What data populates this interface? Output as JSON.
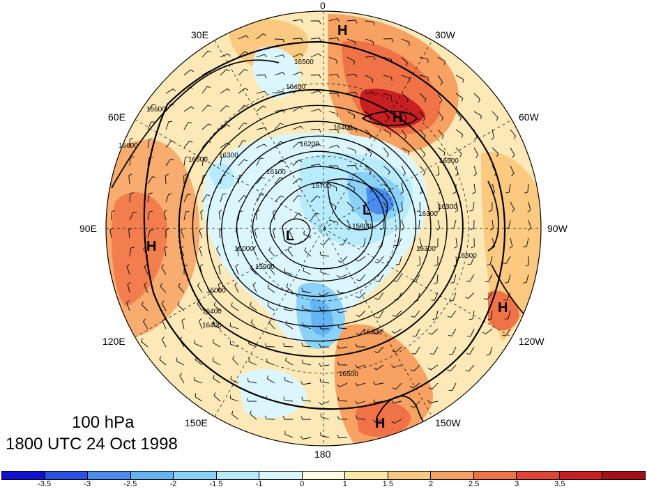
{
  "map": {
    "caption_level": "100 hPa",
    "caption_time": "1800 UTC 24 Oct 1998",
    "longitude_labels": {
      "top": "0",
      "bottom": "180",
      "left": "90E",
      "right": "90W",
      "upper_left_30": "30E",
      "upper_left_60": "60E",
      "lower_left_120": "120E",
      "lower_left_150": "150E",
      "upper_right_30": "30W",
      "upper_right_60": "60W",
      "lower_right_120": "120W",
      "lower_right_150": "150W"
    },
    "pressure_centers": [
      {
        "label": "H",
        "location": "near 0 meridian"
      },
      {
        "label": "H",
        "location": "north Atlantic"
      },
      {
        "label": "L",
        "location": "north of Canada"
      },
      {
        "label": "L",
        "location": "polar Siberia"
      },
      {
        "label": "H",
        "location": "central Asia"
      },
      {
        "label": "H",
        "location": "eastern Pacific"
      },
      {
        "label": "H",
        "location": "north Pacific"
      }
    ],
    "contour_labels": [
      "16500",
      "16400",
      "16600",
      "16600",
      "16500",
      "16400",
      "16300",
      "16200",
      "16100",
      "16000",
      "15900",
      "15700",
      "16000",
      "16400",
      "16500",
      "16500",
      "16400",
      "16300",
      "16300",
      "16500",
      "16400",
      "15800",
      "16300"
    ]
  },
  "colorbar": {
    "colors": [
      "#1010d0",
      "#2a52e6",
      "#4a8cf0",
      "#64b4f5",
      "#8ad2fa",
      "#b8ecfd",
      "#dcf6fe",
      "#fffbe0",
      "#fee9a8",
      "#fcc981",
      "#f7a163",
      "#f07348",
      "#e14434",
      "#c91e22",
      "#a50f15"
    ],
    "tick_labels": [
      "-3.5",
      "-3",
      "-2.5",
      "-2",
      "-1.5",
      "-1",
      "0",
      "1",
      "1.5",
      "2",
      "2.5",
      "3",
      "3.5"
    ]
  }
}
